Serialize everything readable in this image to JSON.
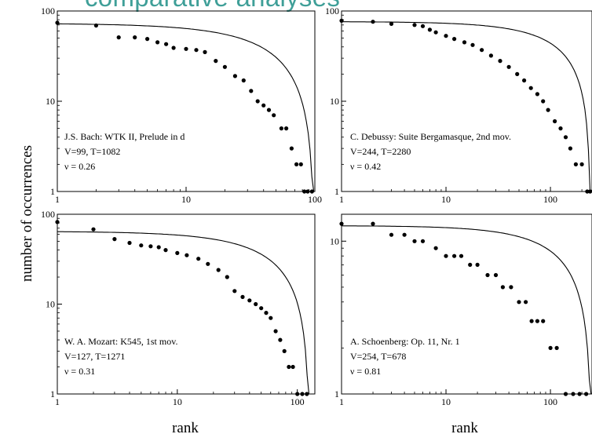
{
  "slide": {
    "heading_fragment": "comparative analyses",
    "heading_color": "#3f9f98"
  },
  "shared_axes": {
    "ylabel": "number of occurrences",
    "xlabel": "rank",
    "x_scale": "log",
    "y_scale": "log"
  },
  "chart_data": [
    {
      "type": "scatter",
      "ylabel": "number of occurrences",
      "xlim": [
        1,
        100
      ],
      "ylim": [
        1,
        100
      ],
      "x_ticks": [
        "1",
        "10",
        "100"
      ],
      "y_ticks": [
        "1",
        "10",
        "100"
      ],
      "annotation": [
        "J.S. Bach: WTK II, Prelude in d",
        "V=99, T=1082",
        "ν = 0.26"
      ],
      "fit": {
        "scale": 72,
        "nu": 0.26,
        "xmax": 98
      },
      "points": [
        [
          1,
          74
        ],
        [
          2,
          69
        ],
        [
          3,
          51
        ],
        [
          4,
          51
        ],
        [
          5,
          49
        ],
        [
          6,
          45
        ],
        [
          7,
          43
        ],
        [
          8,
          39
        ],
        [
          10,
          38
        ],
        [
          12,
          37
        ],
        [
          14,
          35
        ],
        [
          17,
          28
        ],
        [
          20,
          24
        ],
        [
          24,
          19
        ],
        [
          28,
          17
        ],
        [
          32,
          13
        ],
        [
          36,
          10
        ],
        [
          40,
          9
        ],
        [
          44,
          8
        ],
        [
          48,
          7
        ],
        [
          55,
          5
        ],
        [
          60,
          5
        ],
        [
          66,
          3
        ],
        [
          72,
          2
        ],
        [
          78,
          2
        ],
        [
          83,
          1
        ],
        [
          88,
          1
        ],
        [
          95,
          1
        ]
      ]
    },
    {
      "type": "scatter",
      "xlim": [
        1,
        250
      ],
      "ylim": [
        1,
        100
      ],
      "x_ticks": [
        "1",
        "10",
        "100"
      ],
      "y_ticks": [
        "1",
        "10",
        "100"
      ],
      "annotation": [
        "C. Debussy: Suite Bergamasque, 2nd mov.",
        "V=244, T=2280",
        "ν = 0.42"
      ],
      "fit": {
        "scale": 76,
        "nu": 0.42,
        "xmax": 240
      },
      "points": [
        [
          1,
          78
        ],
        [
          2,
          76
        ],
        [
          3,
          72
        ],
        [
          5,
          70
        ],
        [
          6,
          68
        ],
        [
          7,
          62
        ],
        [
          8,
          58
        ],
        [
          10,
          53
        ],
        [
          12,
          49
        ],
        [
          15,
          45
        ],
        [
          18,
          42
        ],
        [
          22,
          37
        ],
        [
          27,
          32
        ],
        [
          33,
          28
        ],
        [
          40,
          24
        ],
        [
          48,
          20
        ],
        [
          56,
          17
        ],
        [
          65,
          14
        ],
        [
          75,
          12
        ],
        [
          85,
          10
        ],
        [
          95,
          8
        ],
        [
          110,
          6
        ],
        [
          125,
          5
        ],
        [
          140,
          4
        ],
        [
          155,
          3
        ],
        [
          175,
          2
        ],
        [
          200,
          2
        ],
        [
          225,
          1
        ],
        [
          240,
          1
        ]
      ]
    },
    {
      "type": "scatter",
      "xlabel": "rank",
      "xlim": [
        1,
        140
      ],
      "ylim": [
        1,
        100
      ],
      "x_ticks": [
        "1",
        "10",
        "100"
      ],
      "y_ticks": [
        "1",
        "10",
        "100"
      ],
      "annotation": [
        "W. A. Mozart: K545, 1st mov.",
        "V=127, T=1271",
        "ν = 0.31"
      ],
      "fit": {
        "scale": 64,
        "nu": 0.31,
        "xmax": 125
      },
      "points": [
        [
          1,
          82
        ],
        [
          2,
          68
        ],
        [
          3,
          53
        ],
        [
          4,
          48
        ],
        [
          5,
          45
        ],
        [
          6,
          44
        ],
        [
          7,
          43
        ],
        [
          8,
          40
        ],
        [
          10,
          37
        ],
        [
          12,
          35
        ],
        [
          15,
          32
        ],
        [
          18,
          28
        ],
        [
          22,
          24
        ],
        [
          26,
          20
        ],
        [
          30,
          14
        ],
        [
          35,
          12
        ],
        [
          40,
          11
        ],
        [
          45,
          10
        ],
        [
          50,
          9
        ],
        [
          55,
          8
        ],
        [
          60,
          7
        ],
        [
          66,
          5
        ],
        [
          72,
          4
        ],
        [
          78,
          3
        ],
        [
          85,
          2
        ],
        [
          92,
          2
        ],
        [
          100,
          1
        ],
        [
          110,
          1
        ],
        [
          120,
          1
        ]
      ]
    },
    {
      "type": "scatter",
      "xlabel": "rank",
      "xlim": [
        1,
        250
      ],
      "ylim": [
        1,
        15
      ],
      "x_ticks": [
        "1",
        "10",
        "100"
      ],
      "y_ticks": [
        "1",
        "10"
      ],
      "annotation": [
        "A. Schoenberg: Op. 11, Nr. 1",
        "V=254, T=678",
        "ν = 0.81"
      ],
      "fit": {
        "scale": 12.6,
        "nu": 0.81,
        "xmax": 245
      },
      "points": [
        [
          1,
          13
        ],
        [
          2,
          13
        ],
        [
          3,
          11
        ],
        [
          4,
          11
        ],
        [
          5,
          10
        ],
        [
          6,
          10
        ],
        [
          8,
          9
        ],
        [
          10,
          8
        ],
        [
          12,
          8
        ],
        [
          14,
          8
        ],
        [
          17,
          7
        ],
        [
          20,
          7
        ],
        [
          25,
          6
        ],
        [
          30,
          6
        ],
        [
          35,
          5
        ],
        [
          42,
          5
        ],
        [
          50,
          4
        ],
        [
          58,
          4
        ],
        [
          66,
          3
        ],
        [
          75,
          3
        ],
        [
          85,
          3
        ],
        [
          100,
          2
        ],
        [
          115,
          2
        ],
        [
          140,
          1
        ],
        [
          165,
          1
        ],
        [
          190,
          1
        ],
        [
          220,
          1
        ]
      ]
    }
  ]
}
